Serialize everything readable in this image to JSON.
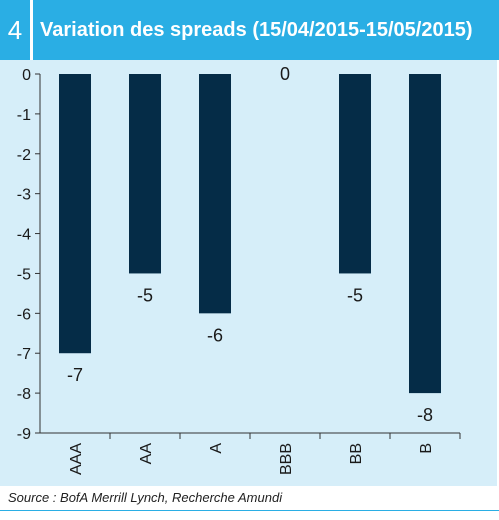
{
  "figure": {
    "number": "4",
    "title": "Variation des spreads (15/04/2015-15/05/2015)",
    "source": "Source : BofA Merrill Lynch, Recherche Amundi"
  },
  "colors": {
    "header": "#2aaee4",
    "panel": "#d6eef9",
    "bar": "#052c47",
    "axis": "#333333"
  },
  "chart_data": {
    "type": "bar",
    "categories": [
      "AAA",
      "AA",
      "A",
      "BBB",
      "BB",
      "B"
    ],
    "values": [
      -7,
      -5,
      -6,
      0,
      -5,
      -8
    ],
    "data_labels": [
      "-7",
      "-5",
      "-6",
      "0",
      "-5",
      "-8"
    ],
    "ylim": [
      -9,
      0
    ],
    "yticks": [
      0,
      -1,
      -2,
      -3,
      -4,
      -5,
      -6,
      -7,
      -8,
      -9
    ],
    "grid": false,
    "legend": "none",
    "title": "",
    "xlabel": "",
    "ylabel": ""
  }
}
